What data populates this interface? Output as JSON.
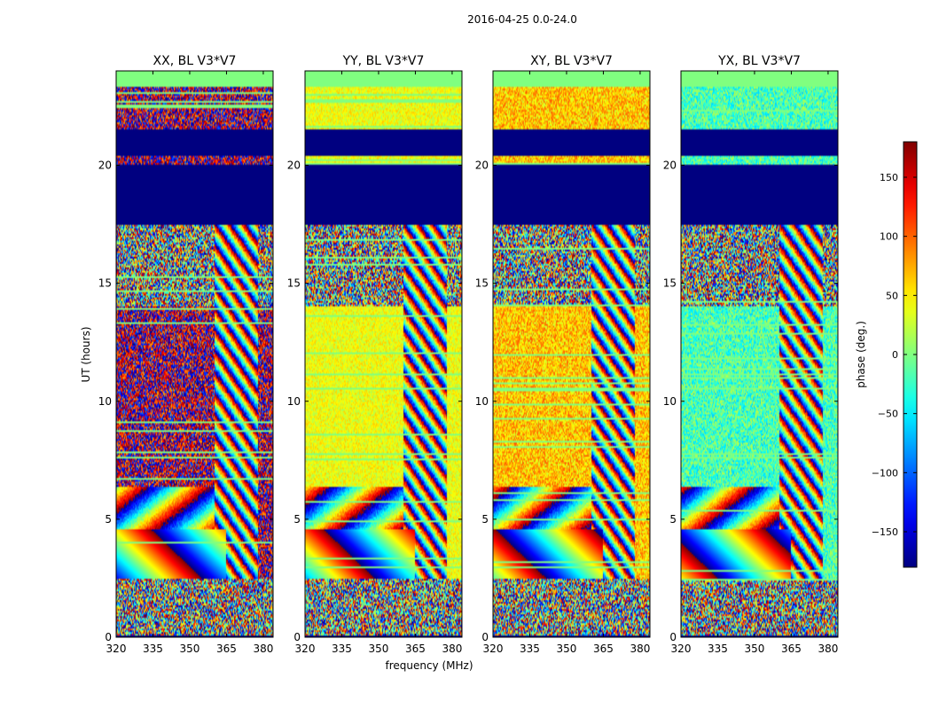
{
  "chart_data": {
    "type": "heatmap",
    "title": "2016-04-25 0.0-24.0",
    "xlabel": "frequency (MHz)",
    "ylabel": "UT (hours)",
    "xlim": [
      320,
      384
    ],
    "ylim": [
      0,
      24
    ],
    "xticks": [
      320,
      335,
      350,
      365,
      380
    ],
    "yticks": [
      0,
      5,
      10,
      15,
      20
    ],
    "panels": [
      {
        "title": "XX, BL V3*V7",
        "base": 170,
        "amp": 45,
        "wrap": true
      },
      {
        "title": "YY, BL V3*V7",
        "base": 40,
        "amp": 25,
        "wrap": false
      },
      {
        "title": "XY, BL V3*V7",
        "base": 65,
        "amp": 40,
        "wrap": false
      },
      {
        "title": "YX, BL V3*V7",
        "base": -20,
        "amp": 45,
        "wrap": false
      }
    ],
    "flagged_bands_hours": [
      [
        17.5,
        20.0
      ],
      [
        20.4,
        21.5
      ],
      [
        0.0,
        0.08
      ],
      [
        23.3,
        24.0
      ]
    ],
    "colorbar": {
      "label": "phase (deg.)",
      "range": [
        -180,
        180
      ],
      "ticks": [
        -150,
        -100,
        -50,
        0,
        50,
        100,
        150
      ],
      "colormap": "jet"
    }
  }
}
